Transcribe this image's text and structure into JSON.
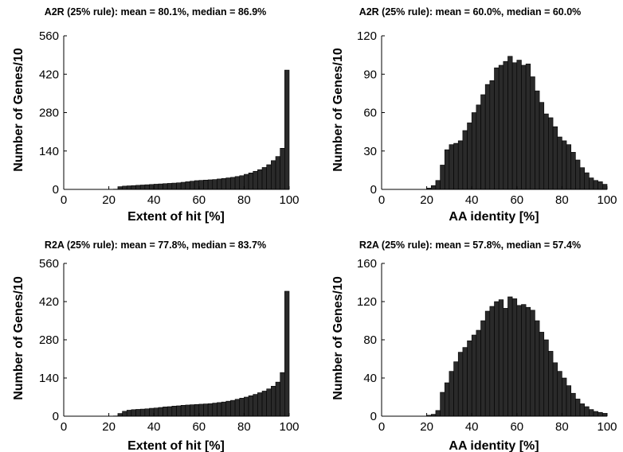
{
  "chart_data": [
    {
      "type": "bar",
      "title": "A2R (25% rule): mean = 80.1%, median = 86.9%",
      "xlabel": "Extent of hit [%]",
      "ylabel": "Number of Genes/10",
      "xlim": [
        0,
        100
      ],
      "ylim": [
        0,
        560
      ],
      "xticks": [
        "0",
        "20",
        "40",
        "60",
        "80",
        "100"
      ],
      "yticks": [
        "0",
        "140",
        "280",
        "420",
        "560"
      ],
      "bin_width": 2,
      "x": [
        1,
        3,
        5,
        7,
        9,
        11,
        13,
        15,
        17,
        19,
        21,
        23,
        25,
        27,
        29,
        31,
        33,
        35,
        37,
        39,
        41,
        43,
        45,
        47,
        49,
        51,
        53,
        55,
        57,
        59,
        61,
        63,
        65,
        67,
        69,
        71,
        73,
        75,
        77,
        79,
        81,
        83,
        85,
        87,
        89,
        91,
        93,
        95,
        97,
        99
      ],
      "values": [
        0,
        0,
        0,
        0,
        0,
        0,
        0,
        0,
        0,
        0,
        0,
        1,
        10,
        12,
        13,
        14,
        15,
        16,
        17,
        18,
        19,
        20,
        21,
        22,
        23,
        24,
        26,
        28,
        30,
        32,
        33,
        34,
        35,
        36,
        38,
        40,
        42,
        44,
        47,
        50,
        55,
        60,
        66,
        72,
        80,
        90,
        105,
        120,
        150,
        435
      ]
    },
    {
      "type": "bar",
      "title": "A2R (25% rule): mean = 60.0%, median = 60.0%",
      "xlabel": "AA identity [%]",
      "ylabel": "Number of Genes/10",
      "xlim": [
        0,
        100
      ],
      "ylim": [
        0,
        120
      ],
      "xticks": [
        "0",
        "20",
        "40",
        "60",
        "80",
        "100"
      ],
      "yticks": [
        "0",
        "30",
        "60",
        "90",
        "120"
      ],
      "bin_width": 2,
      "x": [
        1,
        3,
        5,
        7,
        9,
        11,
        13,
        15,
        17,
        19,
        21,
        23,
        25,
        27,
        29,
        31,
        33,
        35,
        37,
        39,
        41,
        43,
        45,
        47,
        49,
        51,
        53,
        55,
        57,
        59,
        61,
        63,
        65,
        67,
        69,
        71,
        73,
        75,
        77,
        79,
        81,
        83,
        85,
        87,
        89,
        91,
        93,
        95,
        97,
        99
      ],
      "values": [
        0,
        0,
        0,
        0,
        0,
        0,
        0,
        0,
        0,
        0,
        1,
        3,
        7,
        19,
        31,
        35,
        36,
        38,
        46,
        52,
        60,
        66,
        74,
        82,
        85,
        95,
        97,
        100,
        104,
        99,
        101,
        97,
        98,
        88,
        77,
        68,
        59,
        56,
        49,
        41,
        38,
        35,
        29,
        23,
        17,
        13,
        9,
        7,
        6,
        4
      ]
    },
    {
      "type": "bar",
      "title": "R2A (25% rule): mean = 77.8%, median = 83.7%",
      "xlabel": "Extent of hit [%]",
      "ylabel": "Number of Genes/10",
      "xlim": [
        0,
        100
      ],
      "ylim": [
        0,
        560
      ],
      "xticks": [
        "0",
        "20",
        "40",
        "60",
        "80",
        "100"
      ],
      "yticks": [
        "0",
        "140",
        "280",
        "420",
        "560"
      ],
      "bin_width": 2,
      "x": [
        1,
        3,
        5,
        7,
        9,
        11,
        13,
        15,
        17,
        19,
        21,
        23,
        25,
        27,
        29,
        31,
        33,
        35,
        37,
        39,
        41,
        43,
        45,
        47,
        49,
        51,
        53,
        55,
        57,
        59,
        61,
        63,
        65,
        67,
        69,
        71,
        73,
        75,
        77,
        79,
        81,
        83,
        85,
        87,
        89,
        91,
        93,
        95,
        97,
        99
      ],
      "values": [
        0,
        0,
        0,
        0,
        0,
        0,
        0,
        0,
        0,
        0,
        0,
        1,
        10,
        18,
        22,
        24,
        25,
        26,
        27,
        29,
        30,
        32,
        34,
        35,
        37,
        38,
        40,
        41,
        42,
        43,
        44,
        45,
        46,
        48,
        50,
        52,
        55,
        58,
        62,
        66,
        70,
        75,
        80,
        86,
        92,
        100,
        110,
        125,
        160,
        458
      ]
    },
    {
      "type": "bar",
      "title": "R2A (25% rule): mean = 57.8%, median = 57.4%",
      "xlabel": "AA identity [%]",
      "ylabel": "Number of Genes/10",
      "xlim": [
        0,
        100
      ],
      "ylim": [
        0,
        160
      ],
      "xticks": [
        "0",
        "20",
        "40",
        "60",
        "80",
        "100"
      ],
      "yticks": [
        "0",
        "40",
        "80",
        "120",
        "160"
      ],
      "bin_width": 2,
      "x": [
        1,
        3,
        5,
        7,
        9,
        11,
        13,
        15,
        17,
        19,
        21,
        23,
        25,
        27,
        29,
        31,
        33,
        35,
        37,
        39,
        41,
        43,
        45,
        47,
        49,
        51,
        53,
        55,
        57,
        59,
        61,
        63,
        65,
        67,
        69,
        71,
        73,
        75,
        77,
        79,
        81,
        83,
        85,
        87,
        89,
        91,
        93,
        95,
        97,
        99
      ],
      "values": [
        0,
        0,
        0,
        0,
        0,
        0,
        0,
        0,
        0,
        0,
        1,
        2,
        6,
        25,
        35,
        47,
        57,
        67,
        72,
        79,
        85,
        90,
        100,
        110,
        115,
        120,
        122,
        113,
        125,
        123,
        116,
        117,
        114,
        111,
        100,
        88,
        80,
        68,
        56,
        47,
        40,
        32,
        24,
        18,
        13,
        10,
        7,
        5,
        4,
        3
      ]
    }
  ]
}
